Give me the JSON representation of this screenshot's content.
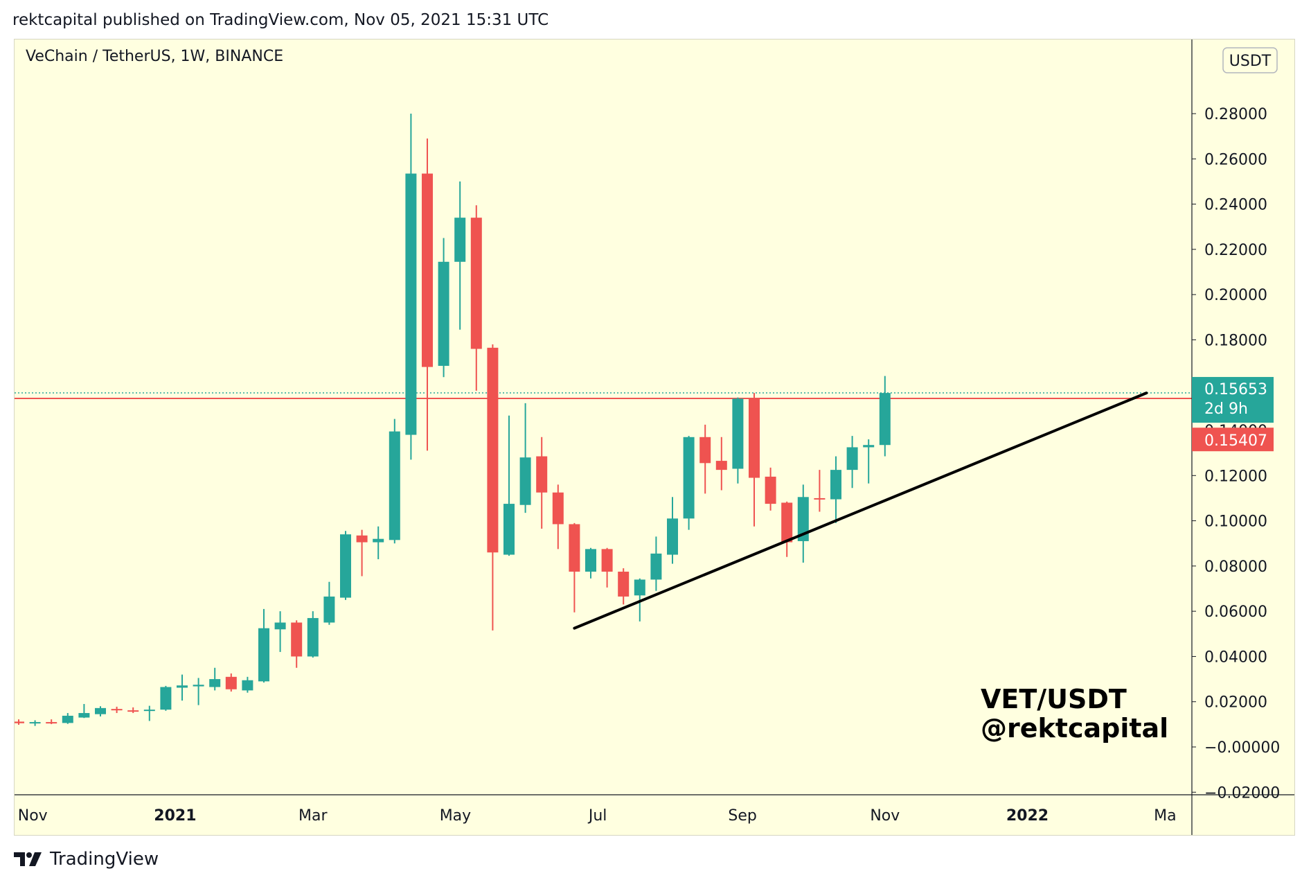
{
  "header": {
    "published": "rektcapital published on TradingView.com, Nov 05, 2021 15:31 UTC"
  },
  "footer": {
    "brand": "TradingView"
  },
  "colors": {
    "background": "#ffffe0",
    "up": "#26a69a",
    "down": "#ef5350",
    "trendline": "#000000",
    "resistance": "#ef5350"
  },
  "chart_data": {
    "type": "candlestick",
    "title": "VeChain / TetherUS, 1W, BINANCE",
    "currency": "USDT",
    "y_ticks": [
      "0.28000",
      "0.26000",
      "0.24000",
      "0.22000",
      "0.20000",
      "0.18000",
      "0.16000",
      "0.14000",
      "0.12000",
      "0.10000",
      "0.08000",
      "0.06000",
      "0.04000",
      "0.02000",
      "0.00000",
      "-0.02000"
    ],
    "y_tick_values": [
      0.28,
      0.26,
      0.24,
      0.22,
      0.2,
      0.18,
      0.16,
      0.14,
      0.12,
      0.1,
      0.08,
      0.06,
      0.04,
      0.02,
      0.0,
      -0.02
    ],
    "y_tick_labels": [
      "0.28000",
      "0.26000",
      "0.24000",
      "0.22000",
      "0.20000",
      "0.18000",
      "0.16000",
      "0.14000",
      "0.12000",
      "0.10000",
      "0.08000",
      "0.06000",
      "0.04000",
      "0.02000",
      "−0.00000",
      "−0.02000"
    ],
    "ylim": [
      -0.02,
      0.32
    ],
    "x_ticks": [
      {
        "label": "Nov",
        "date": "2020-11-01",
        "bold": false
      },
      {
        "label": "2021",
        "date": "2021-01-01",
        "bold": true
      },
      {
        "label": "Mar",
        "date": "2021-03-01",
        "bold": false
      },
      {
        "label": "May",
        "date": "2021-05-01",
        "bold": false
      },
      {
        "label": "Jul",
        "date": "2021-07-01",
        "bold": false
      },
      {
        "label": "Sep",
        "date": "2021-09-01",
        "bold": false
      },
      {
        "label": "Nov",
        "date": "2021-11-01",
        "bold": false
      },
      {
        "label": "2022",
        "date": "2022-01-01",
        "bold": true
      },
      {
        "label": "Ma",
        "date": "2022-03-01",
        "bold": false
      }
    ],
    "candles": [
      {
        "date": "2020-10-26",
        "o": 0.0112,
        "h": 0.0122,
        "l": 0.0098,
        "c": 0.0105
      },
      {
        "date": "2020-11-02",
        "o": 0.0105,
        "h": 0.0118,
        "l": 0.0093,
        "c": 0.011
      },
      {
        "date": "2020-11-09",
        "o": 0.011,
        "h": 0.0122,
        "l": 0.0101,
        "c": 0.0106
      },
      {
        "date": "2020-11-16",
        "o": 0.0106,
        "h": 0.015,
        "l": 0.0102,
        "c": 0.0138
      },
      {
        "date": "2020-11-23",
        "o": 0.013,
        "h": 0.019,
        "l": 0.0128,
        "c": 0.015
      },
      {
        "date": "2020-11-30",
        "o": 0.0145,
        "h": 0.018,
        "l": 0.0135,
        "c": 0.0172
      },
      {
        "date": "2020-12-07",
        "o": 0.0168,
        "h": 0.0178,
        "l": 0.015,
        "c": 0.0162
      },
      {
        "date": "2020-12-14",
        "o": 0.0162,
        "h": 0.0175,
        "l": 0.015,
        "c": 0.0158
      },
      {
        "date": "2020-12-21",
        "o": 0.016,
        "h": 0.0182,
        "l": 0.0115,
        "c": 0.0165
      },
      {
        "date": "2020-12-28",
        "o": 0.0165,
        "h": 0.027,
        "l": 0.016,
        "c": 0.0265
      },
      {
        "date": "2021-01-04",
        "o": 0.0262,
        "h": 0.032,
        "l": 0.0205,
        "c": 0.0272
      },
      {
        "date": "2021-01-11",
        "o": 0.0268,
        "h": 0.0305,
        "l": 0.0185,
        "c": 0.0275
      },
      {
        "date": "2021-01-18",
        "o": 0.0265,
        "h": 0.035,
        "l": 0.025,
        "c": 0.03
      },
      {
        "date": "2021-01-25",
        "o": 0.031,
        "h": 0.0325,
        "l": 0.0245,
        "c": 0.0255
      },
      {
        "date": "2021-02-01",
        "o": 0.025,
        "h": 0.031,
        "l": 0.024,
        "c": 0.0295
      },
      {
        "date": "2021-02-08",
        "o": 0.029,
        "h": 0.061,
        "l": 0.0285,
        "c": 0.0525
      },
      {
        "date": "2021-02-15",
        "o": 0.052,
        "h": 0.06,
        "l": 0.042,
        "c": 0.055
      },
      {
        "date": "2021-02-22",
        "o": 0.055,
        "h": 0.056,
        "l": 0.035,
        "c": 0.04
      },
      {
        "date": "2021-03-01",
        "o": 0.04,
        "h": 0.06,
        "l": 0.0395,
        "c": 0.057
      },
      {
        "date": "2021-03-08",
        "o": 0.055,
        "h": 0.073,
        "l": 0.054,
        "c": 0.0665
      },
      {
        "date": "2021-03-15",
        "o": 0.066,
        "h": 0.0955,
        "l": 0.065,
        "c": 0.094
      },
      {
        "date": "2021-03-22",
        "o": 0.0935,
        "h": 0.096,
        "l": 0.0755,
        "c": 0.0905
      },
      {
        "date": "2021-03-29",
        "o": 0.0905,
        "h": 0.0975,
        "l": 0.083,
        "c": 0.092
      },
      {
        "date": "2021-04-05",
        "o": 0.0915,
        "h": 0.145,
        "l": 0.09,
        "c": 0.1395
      },
      {
        "date": "2021-04-12",
        "o": 0.138,
        "h": 0.28,
        "l": 0.127,
        "c": 0.2535
      },
      {
        "date": "2021-04-19",
        "o": 0.2535,
        "h": 0.269,
        "l": 0.131,
        "c": 0.168
      },
      {
        "date": "2021-04-26",
        "o": 0.1685,
        "h": 0.225,
        "l": 0.1635,
        "c": 0.2145
      },
      {
        "date": "2021-05-03",
        "o": 0.2145,
        "h": 0.25,
        "l": 0.1845,
        "c": 0.234
      },
      {
        "date": "2021-05-10",
        "o": 0.234,
        "h": 0.2395,
        "l": 0.1575,
        "c": 0.176
      },
      {
        "date": "2021-05-17",
        "o": 0.1765,
        "h": 0.178,
        "l": 0.0515,
        "c": 0.086
      },
      {
        "date": "2021-05-24",
        "o": 0.085,
        "h": 0.1465,
        "l": 0.0845,
        "c": 0.1075
      },
      {
        "date": "2021-05-31",
        "o": 0.107,
        "h": 0.152,
        "l": 0.1035,
        "c": 0.128
      },
      {
        "date": "2021-06-07",
        "o": 0.1285,
        "h": 0.137,
        "l": 0.0965,
        "c": 0.1125
      },
      {
        "date": "2021-06-14",
        "o": 0.1125,
        "h": 0.116,
        "l": 0.0875,
        "c": 0.0985
      },
      {
        "date": "2021-06-21",
        "o": 0.0985,
        "h": 0.099,
        "l": 0.0595,
        "c": 0.0775
      },
      {
        "date": "2021-06-28",
        "o": 0.0775,
        "h": 0.088,
        "l": 0.0745,
        "c": 0.0875
      },
      {
        "date": "2021-07-05",
        "o": 0.0875,
        "h": 0.088,
        "l": 0.0705,
        "c": 0.0775
      },
      {
        "date": "2021-07-12",
        "o": 0.0775,
        "h": 0.079,
        "l": 0.063,
        "c": 0.0665
      },
      {
        "date": "2021-07-19",
        "o": 0.067,
        "h": 0.0745,
        "l": 0.0555,
        "c": 0.074
      },
      {
        "date": "2021-07-26",
        "o": 0.074,
        "h": 0.093,
        "l": 0.069,
        "c": 0.0855
      },
      {
        "date": "2021-08-02",
        "o": 0.085,
        "h": 0.1105,
        "l": 0.081,
        "c": 0.101
      },
      {
        "date": "2021-08-09",
        "o": 0.101,
        "h": 0.1375,
        "l": 0.096,
        "c": 0.137
      },
      {
        "date": "2021-08-16",
        "o": 0.137,
        "h": 0.1425,
        "l": 0.112,
        "c": 0.1255
      },
      {
        "date": "2021-08-23",
        "o": 0.1265,
        "h": 0.137,
        "l": 0.1135,
        "c": 0.1225
      },
      {
        "date": "2021-08-30",
        "o": 0.123,
        "h": 0.1545,
        "l": 0.1165,
        "c": 0.154
      },
      {
        "date": "2021-09-06",
        "o": 0.154,
        "h": 0.1565,
        "l": 0.0975,
        "c": 0.119
      },
      {
        "date": "2021-09-13",
        "o": 0.1195,
        "h": 0.1235,
        "l": 0.1045,
        "c": 0.1075
      },
      {
        "date": "2021-09-20",
        "o": 0.108,
        "h": 0.1085,
        "l": 0.084,
        "c": 0.0905
      },
      {
        "date": "2021-09-27",
        "o": 0.091,
        "h": 0.116,
        "l": 0.0815,
        "c": 0.1105
      },
      {
        "date": "2021-10-04",
        "o": 0.11,
        "h": 0.1225,
        "l": 0.104,
        "c": 0.1095
      },
      {
        "date": "2021-10-11",
        "o": 0.1095,
        "h": 0.1285,
        "l": 0.099,
        "c": 0.1225
      },
      {
        "date": "2021-10-18",
        "o": 0.1225,
        "h": 0.1375,
        "l": 0.1145,
        "c": 0.1325
      },
      {
        "date": "2021-10-25",
        "o": 0.1325,
        "h": 0.136,
        "l": 0.1165,
        "c": 0.1335
      },
      {
        "date": "2021-11-01",
        "o": 0.1335,
        "h": 0.164,
        "l": 0.1285,
        "c": 0.1565
      }
    ],
    "trendline": {
      "start": {
        "date": "2021-06-21",
        "price": 0.0525
      },
      "end": {
        "date": "2022-02-21",
        "price": 0.1565
      }
    },
    "resistance_level": 0.1541,
    "last_price": {
      "value": "0.15653",
      "countdown": "2d 9h",
      "numeric": 0.15653
    },
    "level_label": {
      "value": "0.15407"
    },
    "annotation": {
      "line1": "VET/USDT",
      "line2": "@rektcapital"
    }
  }
}
